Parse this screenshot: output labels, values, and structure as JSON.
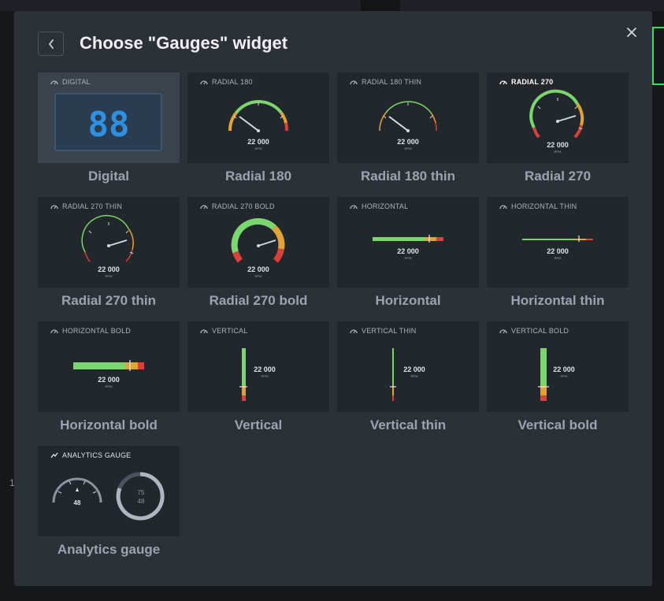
{
  "dialog": {
    "title": "Choose \"Gauges\" widget"
  },
  "icons": {
    "back": "chevron-left-icon",
    "close": "close-icon",
    "gauge": "speedometer-icon",
    "analytics": "trend-line-icon"
  },
  "colors": {
    "green": "#7ad66e",
    "orange": "#e0a33a",
    "red": "#d8413a",
    "digital": "#2f8fe0"
  },
  "background": {
    "side_number": "1"
  },
  "gauge_readout": {
    "value": "22 000",
    "unit": "RPM"
  },
  "digital": {
    "display": "88"
  },
  "analytics": {
    "left_value": "48",
    "ring_top": "75",
    "ring_bottom": "48"
  },
  "widgets": [
    {
      "label": "DIGITAL",
      "name": "Digital"
    },
    {
      "label": "RADIAL 180",
      "name": "Radial 180"
    },
    {
      "label": "RADIAL 180 THIN",
      "name": "Radial 180 thin"
    },
    {
      "label": "RADIAL 270",
      "name": "Radial 270"
    },
    {
      "label": "RADIAL 270 THIN",
      "name": "Radial 270 thin"
    },
    {
      "label": "RADIAL 270 BOLD",
      "name": "Radial 270 bold"
    },
    {
      "label": "HORIZONTAL",
      "name": "Horizontal"
    },
    {
      "label": "HORIZONTAL THIN",
      "name": "Horizontal thin"
    },
    {
      "label": "HORIZONTAL BOLD",
      "name": "Horizontal bold"
    },
    {
      "label": "VERTICAL",
      "name": "Vertical"
    },
    {
      "label": "VERTICAL THIN",
      "name": "Vertical thin"
    },
    {
      "label": "VERTICAL BOLD",
      "name": "Vertical bold"
    },
    {
      "label": "ANALYTICS GAUGE",
      "name": "Analytics gauge"
    }
  ]
}
